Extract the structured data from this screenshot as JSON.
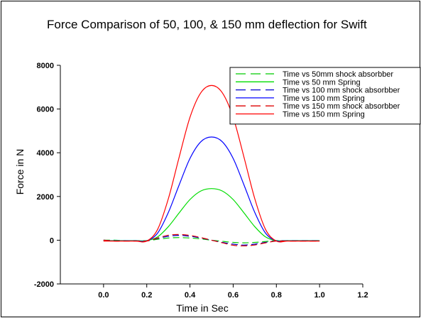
{
  "chart_data": {
    "type": "line",
    "title": "Force Comparison of 50, 100, & 150 mm deflection for Swift",
    "xlabel": "Time in Sec",
    "ylabel": "Force in N",
    "xlim": [
      -0.2,
      1.2
    ],
    "ylim": [
      -2000,
      8000
    ],
    "xticks": [
      "0.0",
      "0.2",
      "0.4",
      "0.6",
      "0.8",
      "1.0",
      "1.2"
    ],
    "yticks": [
      "-2000",
      "0",
      "2000",
      "4000",
      "6000",
      "8000"
    ],
    "grid": false,
    "legend_position": "top-right",
    "x": [
      0.0,
      0.05,
      0.1,
      0.15,
      0.2,
      0.25,
      0.3,
      0.35,
      0.4,
      0.45,
      0.5,
      0.55,
      0.6,
      0.65,
      0.7,
      0.75,
      0.8,
      0.85,
      0.9,
      0.95,
      1.0
    ],
    "series": [
      {
        "name": "Time vs 50mm shock absorbber",
        "color": "#00cc00",
        "dash": "dashed",
        "values": [
          0,
          0,
          -20,
          -20,
          -20,
          40,
          100,
          120,
          100,
          60,
          0,
          -50,
          -100,
          -120,
          -100,
          -60,
          -20,
          -20,
          -20,
          -20,
          -20
        ]
      },
      {
        "name": "Time vs 50 mm Spring",
        "color": "#00dd00",
        "dash": "solid",
        "values": [
          -20,
          -20,
          -20,
          -20,
          -20,
          150,
          620,
          1250,
          1860,
          2250,
          2360,
          2250,
          1860,
          1250,
          620,
          150,
          -20,
          -20,
          -20,
          -20,
          -20
        ]
      },
      {
        "name": "Time vs 100 mm shock absorbber",
        "color": "#0000cc",
        "dash": "dashed",
        "values": [
          0,
          -30,
          -30,
          -30,
          -30,
          80,
          180,
          220,
          180,
          100,
          0,
          -100,
          -180,
          -220,
          -180,
          -100,
          -30,
          -30,
          -30,
          -30,
          -30
        ]
      },
      {
        "name": "Time vs 100 mm Spring",
        "color": "#0000ff",
        "dash": "solid",
        "values": [
          -30,
          -30,
          -30,
          -30,
          -30,
          320,
          1270,
          2530,
          3740,
          4500,
          4720,
          4500,
          3740,
          2530,
          1270,
          320,
          -30,
          -30,
          -30,
          -30,
          -30
        ]
      },
      {
        "name": "Time vs 150 mm shock absorbber",
        "color": "#dd0000",
        "dash": "dashed",
        "values": [
          0,
          -40,
          -40,
          -40,
          -40,
          100,
          230,
          260,
          220,
          120,
          0,
          -120,
          -230,
          -260,
          -220,
          -120,
          -40,
          -40,
          -40,
          -40,
          -40
        ]
      },
      {
        "name": "Time vs 150 mm Spring",
        "color": "#ff0000",
        "dash": "solid",
        "values": [
          -40,
          -40,
          -40,
          -40,
          -40,
          490,
          1900,
          3800,
          5620,
          6740,
          7080,
          6740,
          5620,
          3800,
          1900,
          490,
          -40,
          -40,
          -40,
          -40,
          -40
        ]
      }
    ]
  }
}
